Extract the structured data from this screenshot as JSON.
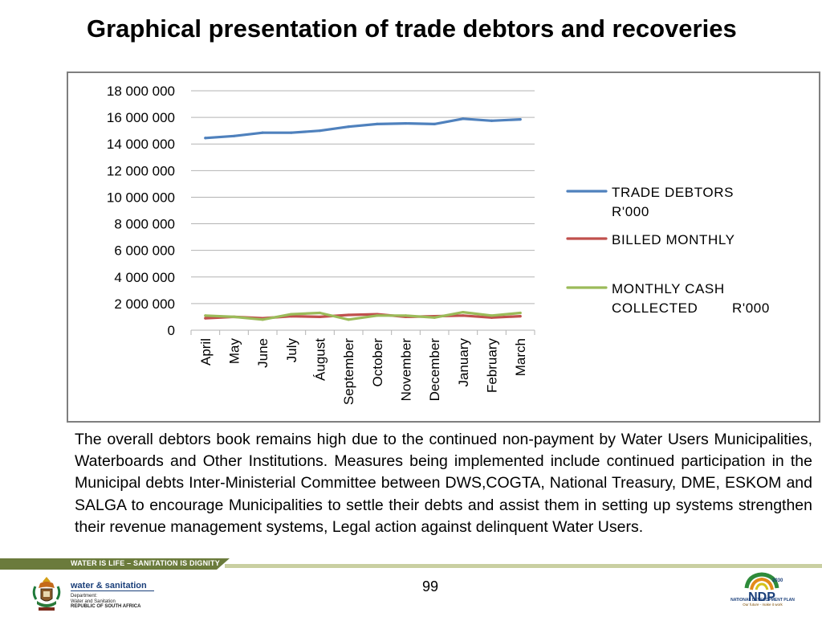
{
  "slide": {
    "title": "Graphical presentation of trade debtors and recoveries",
    "body_text": "The overall debtors book remains high due to the continued non-payment by Water Users Municipalities, Waterboards and Other Institutions.  Measures  being implemented include continued participation in the Municipal debts Inter-Ministerial Committee between DWS,COGTA, National Treasury, DME, ESKOM and SALGA to encourage Municipalities to settle their debts and assist them in setting up systems strengthen their revenue management systems, Legal action against delinquent Water Users.",
    "page_number": "99"
  },
  "footer": {
    "band_text": "WATER IS LIFE – SANITATION IS DIGNITY",
    "dept_name": "water & sanitation",
    "dept_sub": [
      "Department:",
      "Water and Sanitation"
    ],
    "dept_country": "REPUBLIC OF SOUTH AFRICA",
    "ndp_name": "NATIONAL DEVELOPMENT PLAN",
    "ndp_tagline": "Our future - make it work",
    "ndp_year": "2030",
    "ndp_abbr": "NDP"
  },
  "colors": {
    "trade_debtors": "#4f81bd",
    "billed_monthly": "#c0504d",
    "cash_collected": "#9bbb59",
    "gridline": "#b3b3b3",
    "axis_text": "#000000"
  },
  "chart_data": {
    "type": "line",
    "title": "",
    "xlabel": "",
    "ylabel": "",
    "ylim": [
      0,
      18000000
    ],
    "yticks": [
      0,
      2000000,
      4000000,
      6000000,
      8000000,
      10000000,
      12000000,
      14000000,
      16000000,
      18000000
    ],
    "ytick_labels": [
      "0",
      "2 000 000",
      "4 000 000",
      "6 000 000",
      "8 000 000",
      "10 000 000",
      "12 000 000",
      "14 000 000",
      "16 000 000",
      "18 000 000"
    ],
    "categories": [
      "April",
      "May",
      "June",
      "July",
      "Áugust",
      "September",
      "October",
      "November",
      "December",
      "January",
      "February",
      "March"
    ],
    "grid": true,
    "legend_position": "right",
    "series": [
      {
        "name": "TRADE DEBTORS R'000",
        "legend_lines": [
          "TRADE DEBTORS",
          "R'000"
        ],
        "color_key": "trade_debtors",
        "values": [
          14450000,
          14600000,
          14850000,
          14850000,
          15000000,
          15300000,
          15500000,
          15550000,
          15500000,
          15900000,
          15750000,
          15850000
        ]
      },
      {
        "name": "BILLED MONTHLY",
        "legend_lines": [
          "BILLED MONTHLY"
        ],
        "color_key": "billed_monthly",
        "values": [
          900000,
          1000000,
          900000,
          1050000,
          1000000,
          1150000,
          1200000,
          1000000,
          1050000,
          1100000,
          950000,
          1050000
        ]
      },
      {
        "name": "MONTHLY CASH COLLECTED R'000",
        "legend_lines": [
          "MONTHLY CASH",
          "COLLECTED        R'000"
        ],
        "color_key": "cash_collected",
        "values": [
          1100000,
          1000000,
          800000,
          1200000,
          1300000,
          800000,
          1100000,
          1100000,
          950000,
          1350000,
          1100000,
          1300000
        ]
      }
    ]
  }
}
